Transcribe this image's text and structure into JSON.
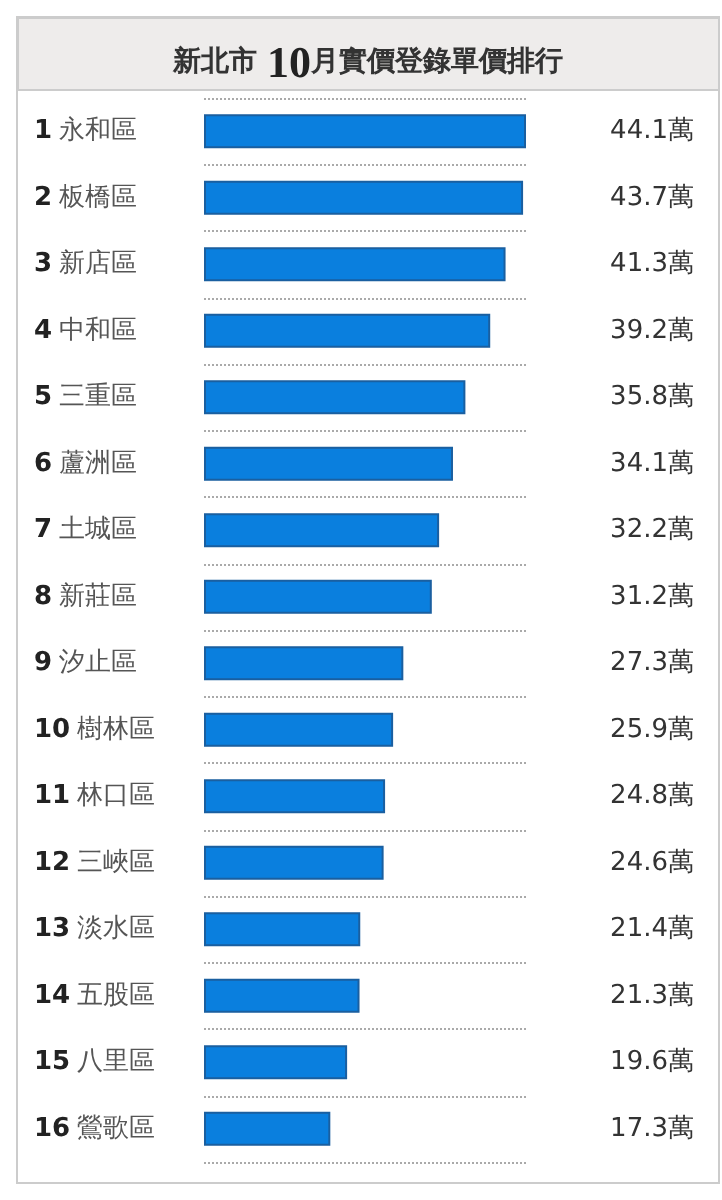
{
  "chart_data": {
    "type": "bar",
    "orientation": "horizontal",
    "title": "新北市 10月實價登錄單價排行",
    "categories": [
      "1 永和區",
      "2 板橋區",
      "3 新店區",
      "4 中和區",
      "5 三重區",
      "6 蘆洲區",
      "7 土城區",
      "8 新莊區",
      "9 汐止區",
      "10 樹林區",
      "11 林口區",
      "12 三峽區",
      "13 淡水區",
      "14 五股區",
      "15 八里區",
      "16 鶯歌區"
    ],
    "values": [
      44.1,
      43.7,
      41.3,
      39.2,
      35.8,
      34.1,
      32.2,
      31.2,
      27.3,
      25.9,
      24.8,
      24.6,
      21.4,
      21.3,
      19.6,
      17.3
    ],
    "value_labels": [
      "44.1萬",
      "43.7萬",
      "41.3萬",
      "39.2萬",
      "35.8萬",
      "34.1萬",
      "32.2萬",
      "31.2萬",
      "27.3萬",
      "25.9萬",
      "24.8萬",
      "24.6萬",
      "21.4萬",
      "21.3萬",
      "19.6萬",
      "17.3萬"
    ],
    "color": "#0a7fde",
    "grid": "y"
  }
}
